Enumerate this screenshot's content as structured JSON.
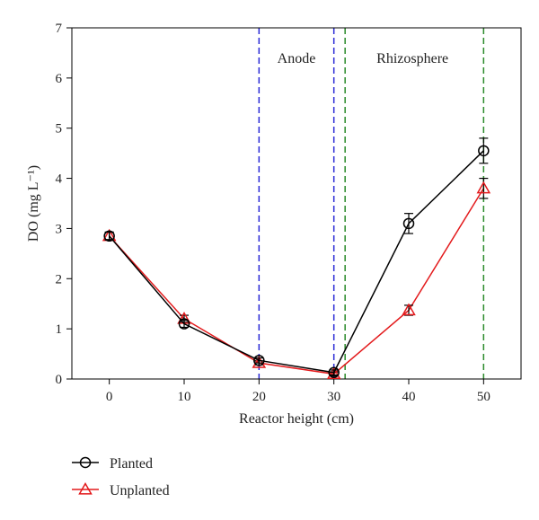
{
  "chart_data": {
    "type": "line",
    "title": "",
    "xlabel": "Reactor height (cm)",
    "ylabel": "DO (mg L⁻¹)",
    "xlim": [
      -5,
      55
    ],
    "ylim": [
      0,
      7
    ],
    "xticks": [
      0,
      10,
      20,
      30,
      40,
      50
    ],
    "yticks": [
      0,
      1,
      2,
      3,
      4,
      5,
      6,
      7
    ],
    "grid": false,
    "legend_position": "bottom-left",
    "series": [
      {
        "name": "Planted",
        "marker": "circle",
        "color": "#000000",
        "x": [
          0,
          10,
          20,
          30,
          40,
          50
        ],
        "y": [
          2.85,
          1.1,
          0.37,
          0.13,
          3.1,
          4.55
        ],
        "error": [
          0.08,
          0.07,
          0.05,
          0.05,
          0.2,
          0.25
        ]
      },
      {
        "name": "Unplanted",
        "marker": "triangle",
        "color": "#e31a1c",
        "x": [
          0,
          10,
          20,
          30,
          40,
          50
        ],
        "y": [
          2.85,
          1.2,
          0.32,
          0.1,
          1.37,
          3.8
        ],
        "error": [
          0.07,
          0.07,
          0.04,
          0.04,
          0.1,
          0.2
        ]
      }
    ],
    "reference_lines": [
      {
        "x": 20,
        "color": "#2a2ad6",
        "style": "dashed"
      },
      {
        "x": 30,
        "color": "#2a2ad6",
        "style": "dashed"
      },
      {
        "x": 31.5,
        "color": "#2a8a2a",
        "style": "dashed"
      },
      {
        "x": 50,
        "color": "#2a8a2a",
        "style": "dashed"
      }
    ],
    "annotations": [
      {
        "text": "Anode",
        "x": 25,
        "y": 6.3
      },
      {
        "text": "Rhizosphere",
        "x": 40.5,
        "y": 6.3
      }
    ]
  }
}
